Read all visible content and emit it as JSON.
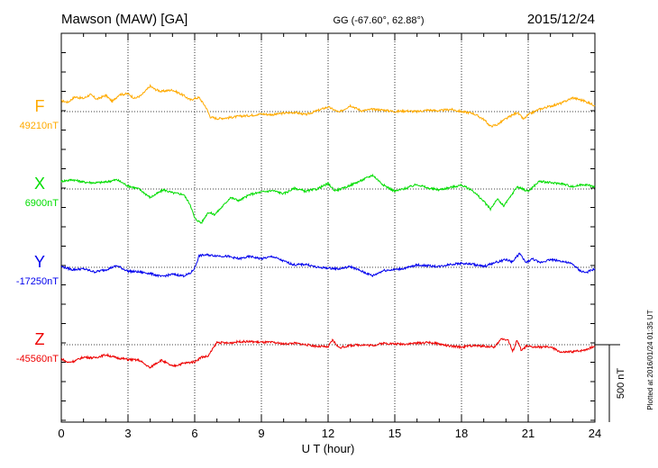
{
  "header": {
    "station": "Mawson (MAW)  [GA]",
    "coords": "GG (-67.60°,  62.88°)",
    "date": "2015/12/24"
  },
  "xaxis": {
    "label": "U T (hour)",
    "ticks": [
      "0",
      "3",
      "6",
      "9",
      "12",
      "15",
      "18",
      "21",
      "24"
    ],
    "range": [
      0,
      24
    ]
  },
  "scale": {
    "label": "500 nT",
    "value_nT": 500
  },
  "footnote": "Plotted at 2016/01/24 01:35 UT",
  "chart_data": {
    "type": "line",
    "title": "Mawson (MAW)  [GA]",
    "xlabel": "U T (hour)",
    "xlim": [
      0,
      24
    ],
    "grid": true,
    "series": [
      {
        "name": "F",
        "baseline_label": "49210nT",
        "baseline_nT": 49210,
        "color": "#ffaa00",
        "x": [
          0,
          0.3,
          0.6,
          1,
          1.3,
          1.6,
          2,
          2.3,
          2.6,
          3,
          3.3,
          3.6,
          4,
          4.2,
          4.5,
          5,
          5.5,
          5.8,
          6,
          6.2,
          6.5,
          6.7,
          7,
          7.5,
          8,
          8.5,
          9,
          9.5,
          10,
          10.5,
          11,
          11.5,
          12,
          12.5,
          13,
          13.5,
          14,
          14.5,
          15,
          15.5,
          16,
          16.5,
          17,
          17.5,
          18,
          18.5,
          19,
          19.3,
          19.6,
          19.9,
          20.2,
          20.5,
          20.8,
          21,
          21.5,
          22,
          22.5,
          23,
          23.5,
          24
        ],
        "values": [
          70,
          60,
          95,
          85,
          110,
          80,
          105,
          65,
          110,
          115,
          85,
          105,
          165,
          145,
          130,
          140,
          105,
          75,
          85,
          90,
          30,
          -35,
          -45,
          -40,
          -30,
          -25,
          -15,
          -20,
          -10,
          -5,
          -20,
          5,
          30,
          -5,
          40,
          5,
          15,
          10,
          0,
          5,
          0,
          10,
          5,
          15,
          0,
          -10,
          -50,
          -95,
          -85,
          -55,
          -30,
          -5,
          -50,
          -20,
          15,
          35,
          55,
          90,
          70,
          40
        ]
      },
      {
        "name": "X",
        "baseline_label": "6900nT",
        "baseline_nT": 6900,
        "color": "#00dd00",
        "x": [
          0,
          0.5,
          1,
          1.5,
          2,
          2.5,
          3,
          3.5,
          4,
          4.3,
          4.6,
          5,
          5.5,
          5.8,
          6,
          6.3,
          6.6,
          6.9,
          7.3,
          7.6,
          8,
          8.5,
          9,
          9.5,
          10,
          10.5,
          11,
          11.5,
          12,
          12.3,
          12.7,
          13,
          13.5,
          14,
          14.5,
          15,
          15.5,
          16,
          16.5,
          17,
          17.5,
          18,
          18.5,
          19,
          19.3,
          19.6,
          19.9,
          20.2,
          20.5,
          21,
          21.5,
          22,
          22.5,
          23,
          23.5,
          24
        ],
        "values": [
          50,
          60,
          45,
          40,
          45,
          60,
          20,
          0,
          -55,
          -30,
          -5,
          -25,
          -35,
          -100,
          -190,
          -220,
          -150,
          -165,
          -105,
          -55,
          -75,
          -35,
          -20,
          -10,
          -30,
          5,
          -15,
          0,
          35,
          -10,
          5,
          25,
          55,
          90,
          25,
          -15,
          5,
          30,
          5,
          -5,
          10,
          25,
          -10,
          -80,
          -130,
          -65,
          -110,
          -50,
          15,
          -15,
          50,
          40,
          35,
          15,
          30,
          15
        ]
      },
      {
        "name": "Y",
        "baseline_label": "-17250nT",
        "baseline_nT": -17250,
        "color": "#0000ee",
        "x": [
          0,
          0.5,
          1,
          1.5,
          2,
          2.5,
          3,
          3.5,
          4,
          4.5,
          5,
          5.5,
          5.8,
          6,
          6.2,
          6.5,
          7,
          7.5,
          8,
          8.5,
          9,
          9.5,
          10,
          10.5,
          11,
          11.5,
          12,
          12.5,
          13,
          13.5,
          14,
          14.5,
          15,
          15.5,
          16,
          16.5,
          17,
          17.5,
          18,
          18.5,
          19,
          19.5,
          20,
          20.3,
          20.6,
          20.9,
          21.2,
          21.5,
          22,
          22.5,
          23,
          23.3,
          23.6,
          24
        ],
        "values": [
          5,
          -15,
          -10,
          -30,
          -15,
          10,
          -25,
          -30,
          -40,
          -60,
          -45,
          -55,
          -40,
          -5,
          75,
          80,
          75,
          70,
          55,
          70,
          55,
          70,
          40,
          15,
          20,
          0,
          -5,
          -10,
          5,
          -25,
          -55,
          -20,
          -15,
          -5,
          15,
          10,
          5,
          20,
          25,
          20,
          5,
          30,
          50,
          35,
          90,
          30,
          55,
          30,
          50,
          40,
          20,
          -20,
          -35,
          -10
        ]
      },
      {
        "name": "Z",
        "baseline_label": "-45560nT",
        "baseline_nT": -45560,
        "color": "#ee0000",
        "x": [
          0,
          0.3,
          0.6,
          1,
          1.5,
          2,
          2.5,
          3,
          3.5,
          4,
          4.2,
          4.5,
          5,
          5.5,
          6,
          6.3,
          6.6,
          7,
          7.5,
          8,
          8.5,
          9,
          9.5,
          10,
          10.5,
          11,
          11.5,
          12,
          12.2,
          12.5,
          13,
          13.5,
          14,
          14.5,
          15,
          15.5,
          16,
          16.5,
          17,
          17.5,
          18,
          18.5,
          19,
          19.5,
          19.8,
          20.1,
          20.3,
          20.5,
          20.7,
          20.9,
          21.2,
          21.5,
          22,
          22.5,
          23,
          23.5,
          24
        ],
        "values": [
          -90,
          -115,
          -105,
          -80,
          -85,
          -65,
          -85,
          -95,
          -100,
          -150,
          -125,
          -100,
          -140,
          -120,
          -110,
          -80,
          -75,
          15,
          10,
          20,
          20,
          15,
          15,
          5,
          10,
          0,
          -10,
          -15,
          30,
          -20,
          -5,
          0,
          -5,
          10,
          5,
          5,
          10,
          15,
          5,
          -10,
          -15,
          -5,
          -10,
          -15,
          40,
          30,
          -45,
          30,
          -40,
          -10,
          -15,
          -15,
          -15,
          -50,
          -45,
          -35,
          -10
        ]
      }
    ]
  }
}
